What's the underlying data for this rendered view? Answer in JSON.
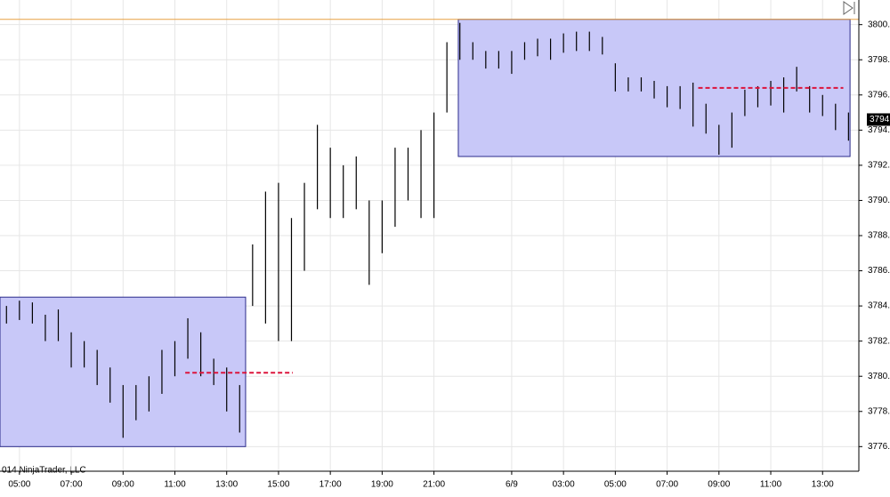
{
  "chart_data": {
    "type": "ohlc",
    "copyright": "014 NinjaTrader, LLC",
    "color": "#000000",
    "grid": true,
    "xlim": [
      0.25,
      33.4
    ],
    "ylim": [
      3774.6,
      3801.4
    ],
    "yticks": [
      {
        "value": 3800,
        "label": "3800."
      },
      {
        "value": 3798,
        "label": "3798."
      },
      {
        "value": 3796,
        "label": "3796."
      },
      {
        "value": 3794,
        "label": "3794."
      },
      {
        "value": 3792,
        "label": "3792."
      },
      {
        "value": 3790,
        "label": "3790."
      },
      {
        "value": 3788,
        "label": "3788."
      },
      {
        "value": 3786,
        "label": "3786."
      },
      {
        "value": 3784,
        "label": "3784."
      },
      {
        "value": 3782,
        "label": "3782."
      },
      {
        "value": 3780,
        "label": "3780."
      },
      {
        "value": 3778,
        "label": "3778."
      },
      {
        "value": 3776,
        "label": "3776."
      }
    ],
    "xticks": [
      {
        "value": 1,
        "label": "05:00"
      },
      {
        "value": 3,
        "label": "07:00"
      },
      {
        "value": 5,
        "label": "09:00"
      },
      {
        "value": 7,
        "label": "11:00"
      },
      {
        "value": 9,
        "label": "13:00"
      },
      {
        "value": 11,
        "label": "15:00"
      },
      {
        "value": 13,
        "label": "17:00"
      },
      {
        "value": 15,
        "label": "19:00"
      },
      {
        "value": 17,
        "label": "21:00"
      },
      {
        "value": 20,
        "label": "6/9"
      },
      {
        "value": 22,
        "label": "03:00"
      },
      {
        "value": 24,
        "label": "05:00"
      },
      {
        "value": 26,
        "label": "07:00"
      },
      {
        "value": 28,
        "label": "09:00"
      },
      {
        "value": 30,
        "label": "11:00"
      },
      {
        "value": 32,
        "label": "13:00"
      }
    ],
    "last_price": {
      "value": 3794.6,
      "label": "3794."
    },
    "x": [
      0.5,
      1,
      1.5,
      2,
      2.5,
      3,
      3.5,
      4,
      4.5,
      5,
      5.5,
      6,
      6.5,
      7,
      7.5,
      8,
      8.5,
      9,
      9.5,
      10,
      10.5,
      11,
      11.5,
      12,
      12.5,
      13,
      13.5,
      14,
      14.5,
      15,
      15.5,
      16,
      16.5,
      17,
      17.5,
      18,
      18.5,
      19,
      19.5,
      20,
      20.5,
      21,
      21.5,
      22,
      22.5,
      23,
      23.5,
      24,
      24.5,
      25,
      25.5,
      26,
      26.5,
      27,
      27.5,
      28,
      28.5,
      29,
      29.5,
      30,
      30.5,
      31,
      31.5,
      32,
      32.5,
      33
    ],
    "high": [
      3784,
      3784.3,
      3784.2,
      3783.5,
      3783.8,
      3782.5,
      3782,
      3781.5,
      3780.5,
      3779.5,
      3779.5,
      3780,
      3781.5,
      3782,
      3783.3,
      3782.5,
      3781,
      3780.5,
      3779.5,
      3787.5,
      3790.5,
      3791,
      3789,
      3791,
      3794.3,
      3793,
      3792,
      3792.5,
      3790,
      3790,
      3793,
      3793,
      3794,
      3795,
      3799,
      3800.1,
      3799,
      3798.5,
      3798.5,
      3798.5,
      3799,
      3799.2,
      3799.2,
      3799.5,
      3799.6,
      3799.6,
      3799.3,
      3797.8,
      3797,
      3797,
      3796.8,
      3796.5,
      3796.5,
      3796.7,
      3795.5,
      3794.3,
      3795,
      3796.3,
      3796.5,
      3796.8,
      3797,
      3797.6,
      3796.5,
      3796,
      3795.5,
      3795
    ],
    "low": [
      3783,
      3783.2,
      3783,
      3782,
      3782,
      3780.5,
      3780.5,
      3779.5,
      3778.5,
      3776.5,
      3777.5,
      3778,
      3779,
      3780,
      3781,
      3780,
      3779.5,
      3778,
      3776.8,
      3784,
      3783,
      3782,
      3782,
      3786,
      3789.5,
      3789,
      3789,
      3789.5,
      3785.2,
      3787,
      3788.5,
      3790,
      3789,
      3789,
      3795,
      3798,
      3798,
      3797.5,
      3797.5,
      3797.2,
      3798,
      3798.2,
      3798,
      3798.4,
      3798.5,
      3798.5,
      3798.3,
      3796.2,
      3796.2,
      3796.2,
      3795.8,
      3795.3,
      3795.2,
      3794.2,
      3793.8,
      3792.6,
      3793,
      3794.8,
      3795.3,
      3795.4,
      3795,
      3796.2,
      3795,
      3794.8,
      3794,
      3793.4
    ],
    "regions": [
      {
        "x": [
          0.25,
          9.73
        ],
        "y": [
          3776,
          3784.5
        ],
        "color": "#c8c8f8"
      },
      {
        "x": [
          17.94,
          33.06
        ],
        "y": [
          3792.5,
          3800.3
        ],
        "color": "#c8c8f8"
      }
    ],
    "levels": [
      {
        "x": [
          7.4,
          11.55
        ],
        "y": 3780.2,
        "color": "#dc143c"
      },
      {
        "x": [
          27.2,
          32.8
        ],
        "y": 3796.4,
        "color": "#dc143c"
      },
      {
        "x": [
          0.25,
          33.4
        ],
        "y": 3800.3,
        "color": "#e8a040"
      }
    ]
  }
}
